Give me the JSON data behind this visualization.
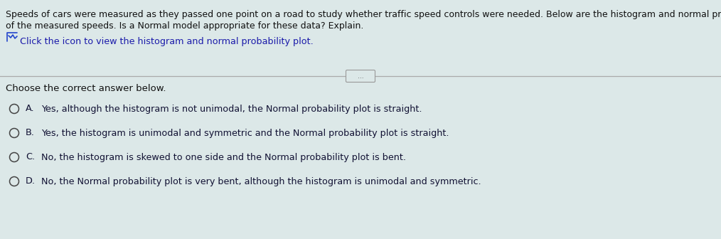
{
  "background_color": "#dce8e8",
  "title_line1": "Speeds of cars were measured as they passed one point on a road to study whether traffic speed controls were needed. Below are the histogram and normal probability plot",
  "title_line2": "of the measured speeds. Is a Normal model appropriate for these data? Explain.",
  "link_text": "Click the icon to view the histogram and normal probability plot.",
  "section_label": "Choose the correct answer below.",
  "options": [
    {
      "letter": "A.",
      "text": "Yes, although the histogram is not unimodal, the Normal probability plot is straight."
    },
    {
      "letter": "B.",
      "text": "Yes, the histogram is unimodal and symmetric and the Normal probability plot is straight."
    },
    {
      "letter": "C.",
      "text": "No, the histogram is skewed to one side and the Normal probability plot is bent."
    },
    {
      "letter": "D.",
      "text": "No, the Normal probability plot is very bent, although the histogram is unimodal and symmetric."
    }
  ],
  "title_fontsize": 9.0,
  "link_fontsize": 9.2,
  "option_fontsize": 9.2,
  "section_fontsize": 9.5,
  "text_color": "#111111",
  "link_color": "#1a1aaa",
  "option_text_color": "#111133",
  "circle_color": "#444444",
  "divider_color": "#aaaaaa",
  "dots_text": "...",
  "icon_color": "#2244cc"
}
